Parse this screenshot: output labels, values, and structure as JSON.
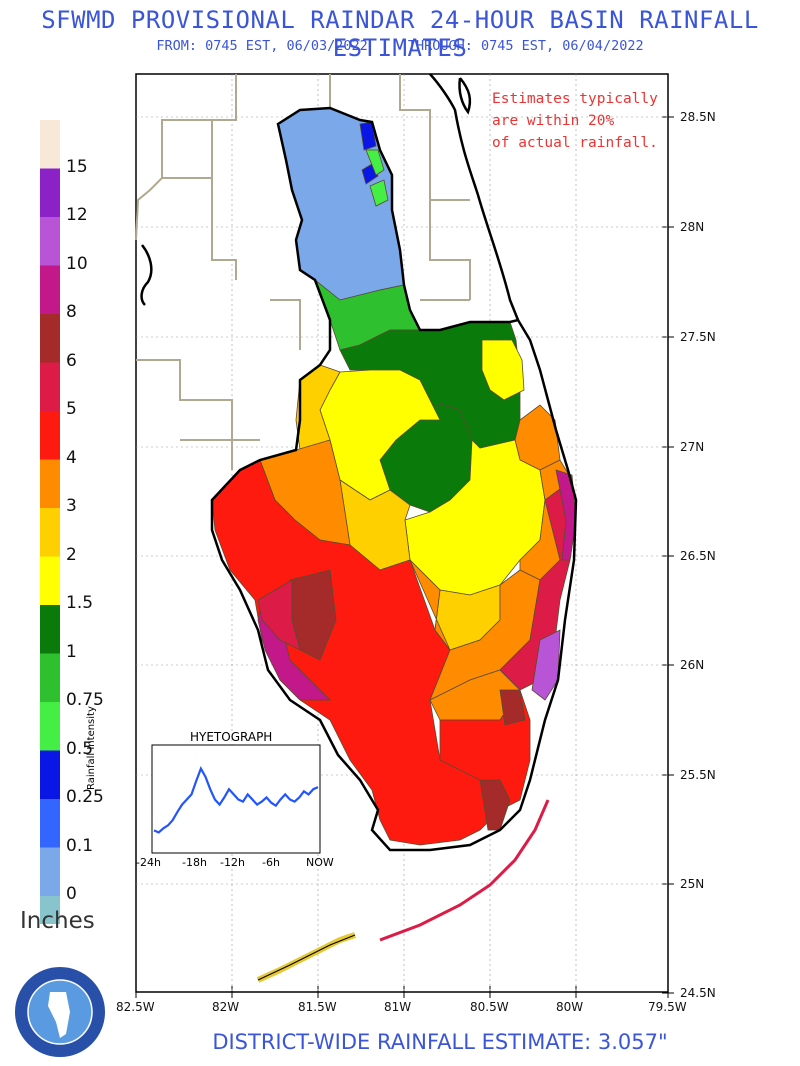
{
  "header": {
    "title": "SFWMD PROVISIONAL RAINDAR 24-HOUR BASIN RAINFALL ESTIMATES",
    "from": "FROM: 0745 EST, 06/03/2022",
    "through": "THROUGH: 0745 EST, 06/04/2022"
  },
  "note": {
    "line1": "Estimates typically",
    "line2": "are within 20%",
    "line3": "of actual rainfall."
  },
  "legend": {
    "units": "Inches",
    "classes": [
      {
        "label": "15",
        "color": "#f8e8d8"
      },
      {
        "label": "12",
        "color": "#8a22c8"
      },
      {
        "label": "10",
        "color": "#b855d6"
      },
      {
        "label": "8",
        "color": "#c2188a"
      },
      {
        "label": "6",
        "color": "#a52a2a"
      },
      {
        "label": "5",
        "color": "#dc1c46"
      },
      {
        "label": "4",
        "color": "#ff1a10"
      },
      {
        "label": "3",
        "color": "#ff8c00"
      },
      {
        "label": "2",
        "color": "#ffd000"
      },
      {
        "label": "1.5",
        "color": "#ffff00"
      },
      {
        "label": "1",
        "color": "#0a7a0a"
      },
      {
        "label": "0.75",
        "color": "#2ec02e"
      },
      {
        "label": "0.5",
        "color": "#44ee44"
      },
      {
        "label": "0.25",
        "color": "#0a16e6"
      },
      {
        "label": "0.1",
        "color": "#3366ff"
      },
      {
        "label": "0",
        "color": "#7aa8e8"
      }
    ],
    "bottom_color": "#88c4cc"
  },
  "axes": {
    "latitudes": [
      "28.5N",
      "28N",
      "27.5N",
      "27N",
      "26.5N",
      "26N",
      "25.5N",
      "25N",
      "24.5N"
    ],
    "longitudes": [
      "82.5W",
      "82W",
      "81.5W",
      "81W",
      "80.5W",
      "80W",
      "79.5W"
    ]
  },
  "hyetograph": {
    "title": "HYETOGRAPH",
    "ylabel": "Rainfall Intensity",
    "ticks": [
      "-24h",
      "-18h",
      "-12h",
      "-6h",
      "NOW"
    ],
    "line_color": "#2255ff",
    "values": [
      0.2,
      0.18,
      0.22,
      0.25,
      0.3,
      0.38,
      0.45,
      0.5,
      0.55,
      0.68,
      0.8,
      0.72,
      0.6,
      0.5,
      0.45,
      0.52,
      0.6,
      0.55,
      0.5,
      0.48,
      0.55,
      0.5,
      0.45,
      0.48,
      0.52,
      0.47,
      0.44,
      0.5,
      0.55,
      0.5,
      0.48,
      0.52,
      0.58,
      0.55,
      0.6,
      0.62
    ]
  },
  "footer": {
    "label": "DISTRICT-WIDE RAINFALL ESTIMATE: 3.057\""
  },
  "map_colors": {
    "water": "#ffffff",
    "border": "#000000",
    "county_lines": "#b0a890",
    "keys_yellow": "#e6c830"
  }
}
